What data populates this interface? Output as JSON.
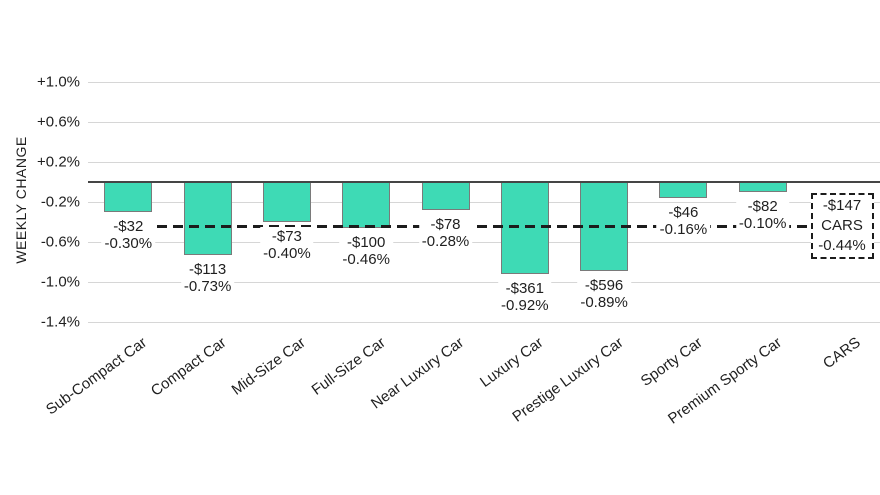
{
  "chart_data": {
    "type": "bar",
    "title": "",
    "ylabel": "WEEKLY CHANGE",
    "xlabel": "",
    "grid": true,
    "legend": false,
    "ylim": [
      -1.4,
      1.0
    ],
    "y_ticks": [
      {
        "label": "+1.0%",
        "value": 1.0
      },
      {
        "label": "+0.6%",
        "value": 0.6
      },
      {
        "label": "+0.2%",
        "value": 0.2
      },
      {
        "label": "-0.2%",
        "value": -0.2
      },
      {
        "label": "-0.6%",
        "value": -0.6
      },
      {
        "label": "-1.0%",
        "value": -1.0
      },
      {
        "label": "-1.4%",
        "value": -1.4
      }
    ],
    "categories": [
      "Sub-Compact Car",
      "Compact Car",
      "Mid-Size Car",
      "Full-Size Car",
      "Near Luxury Car",
      "Luxury Car",
      "Prestige Luxury Car",
      "Sporty Car",
      "Premium Sporty Car",
      "CARS"
    ],
    "bars": [
      {
        "category": "Sub-Compact Car",
        "dollar_label": "-$32",
        "pct_label": "-0.30%",
        "pct": -0.3
      },
      {
        "category": "Compact Car",
        "dollar_label": "-$113",
        "pct_label": "-0.73%",
        "pct": -0.73
      },
      {
        "category": "Mid-Size Car",
        "dollar_label": "-$73",
        "pct_label": "-0.40%",
        "pct": -0.4
      },
      {
        "category": "Full-Size Car",
        "dollar_label": "-$100",
        "pct_label": "-0.46%",
        "pct": -0.46
      },
      {
        "category": "Near Luxury Car",
        "dollar_label": "-$78",
        "pct_label": "-0.28%",
        "pct": -0.28
      },
      {
        "category": "Luxury Car",
        "dollar_label": "-$361",
        "pct_label": "-0.92%",
        "pct": -0.92
      },
      {
        "category": "Prestige Luxury Car",
        "dollar_label": "-$596",
        "pct_label": "-0.89%",
        "pct": -0.89
      },
      {
        "category": "Sporty Car",
        "dollar_label": "-$46",
        "pct_label": "-0.16%",
        "pct": -0.16
      },
      {
        "category": "Premium Sporty Car",
        "dollar_label": "-$82",
        "pct_label": "-0.10%",
        "pct": -0.1
      }
    ],
    "summary": {
      "category": "CARS",
      "dollar_label": "-$147",
      "name_label": "CARS",
      "pct_label": "-0.44%",
      "pct": -0.44,
      "style": "dashed-average-line-with-box"
    },
    "colors": {
      "bar_fill": "#3edab5",
      "bar_border": "#7a7a7a",
      "gridline": "#d6d6d6",
      "zero_line": "#454545",
      "average_line": "#1c1c1c",
      "text": "#1f1f1f",
      "background": "#ffffff"
    }
  }
}
